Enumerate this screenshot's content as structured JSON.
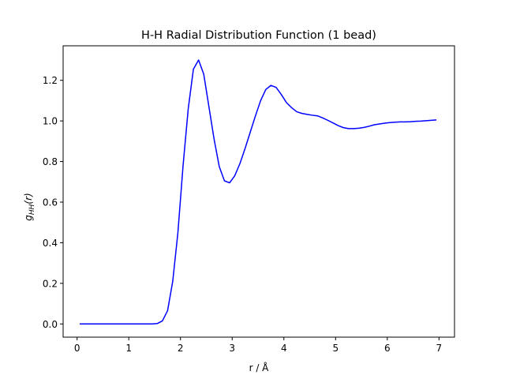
{
  "chart_data": {
    "type": "line",
    "title": "H-H Radial Distribution Function (1 bead)",
    "xlabel": "r / Å",
    "ylabel": "g_HH(r)",
    "xlim": [
      -0.27,
      7.3
    ],
    "ylim": [
      -0.065,
      1.37
    ],
    "xticks": [
      0,
      1,
      2,
      3,
      4,
      5,
      6,
      7
    ],
    "xtick_labels": [
      "0",
      "1",
      "2",
      "3",
      "4",
      "5",
      "6",
      "7"
    ],
    "yticks": [
      0.0,
      0.2,
      0.4,
      0.6,
      0.8,
      1.0,
      1.2
    ],
    "ytick_labels": [
      "0.0",
      "0.2",
      "0.4",
      "0.6",
      "0.8",
      "1.0",
      "1.2"
    ],
    "grid": false,
    "series": [
      {
        "color": "#0000ff",
        "x": [
          0.05,
          0.15,
          0.25,
          0.35,
          0.45,
          0.55,
          0.65,
          0.75,
          0.85,
          0.95,
          1.05,
          1.15,
          1.25,
          1.35,
          1.45,
          1.55,
          1.65,
          1.75,
          1.85,
          1.95,
          2.05,
          2.15,
          2.25,
          2.35,
          2.45,
          2.55,
          2.65,
          2.75,
          2.85,
          2.95,
          3.05,
          3.15,
          3.25,
          3.35,
          3.45,
          3.55,
          3.65,
          3.75,
          3.85,
          3.95,
          4.05,
          4.15,
          4.25,
          4.35,
          4.45,
          4.55,
          4.65,
          4.75,
          4.85,
          4.95,
          5.05,
          5.15,
          5.25,
          5.35,
          5.45,
          5.55,
          5.65,
          5.75,
          5.85,
          5.95,
          6.05,
          6.15,
          6.25,
          6.35,
          6.45,
          6.55,
          6.65,
          6.75,
          6.85,
          6.95
        ],
        "y": [
          0.0,
          0.0,
          0.0,
          0.0,
          0.0,
          0.0,
          0.0,
          0.0,
          0.0,
          0.0,
          0.0,
          0.0,
          0.0,
          0.0,
          0.0,
          0.002,
          0.015,
          0.065,
          0.21,
          0.45,
          0.78,
          1.06,
          1.255,
          1.3,
          1.23,
          1.07,
          0.91,
          0.775,
          0.705,
          0.695,
          0.73,
          0.79,
          0.865,
          0.945,
          1.025,
          1.1,
          1.155,
          1.175,
          1.165,
          1.13,
          1.09,
          1.065,
          1.045,
          1.037,
          1.032,
          1.028,
          1.025,
          1.015,
          1.003,
          0.99,
          0.977,
          0.967,
          0.962,
          0.962,
          0.964,
          0.968,
          0.974,
          0.981,
          0.985,
          0.989,
          0.992,
          0.994,
          0.995,
          0.995,
          0.996,
          0.998,
          0.999,
          1.001,
          1.003,
          1.005
        ]
      }
    ]
  }
}
